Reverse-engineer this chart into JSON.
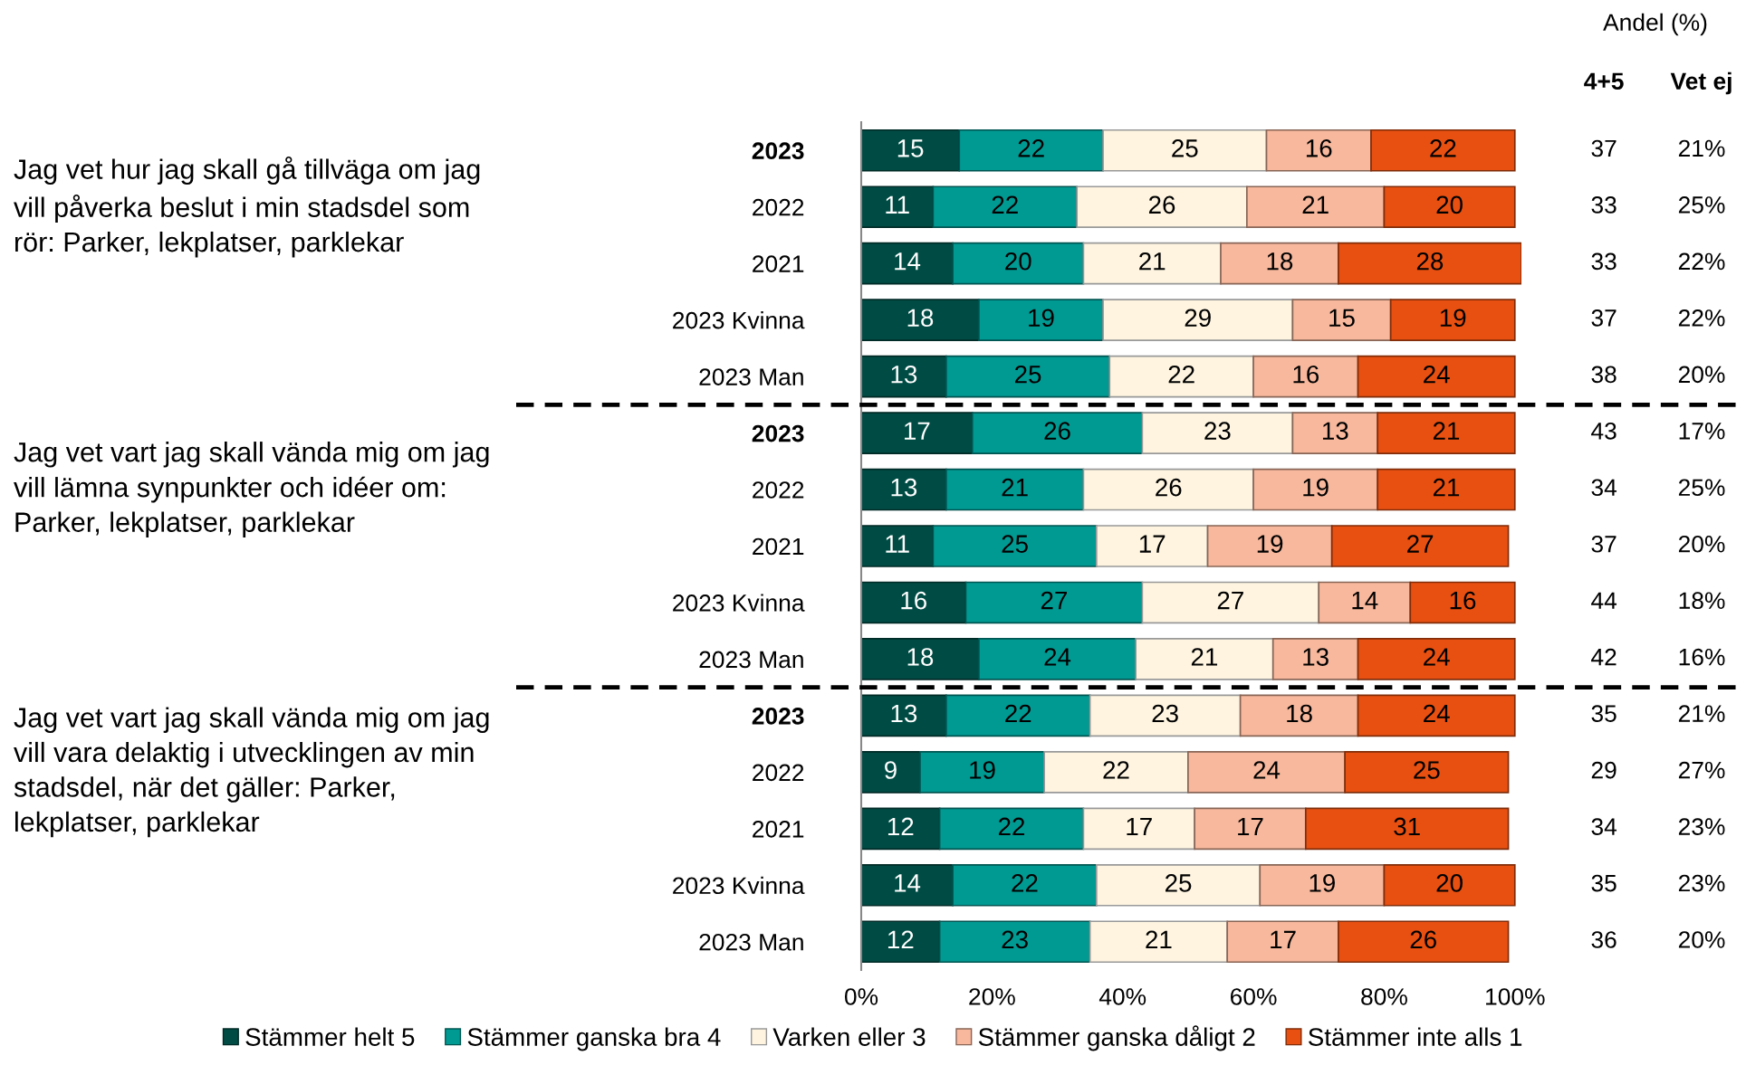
{
  "chart_data": {
    "type": "bar",
    "orientation": "horizontal",
    "stacked": true,
    "data_labels": true,
    "legend": "bottom",
    "grid": false,
    "categories": [
      "2023",
      "2022",
      "2021",
      "2023 Kvinna",
      "2023 Man",
      "2023",
      "2022",
      "2021",
      "2023 Kvinna",
      "2023 Man",
      "2023",
      "2022",
      "2021",
      "2023 Kvinna",
      "2023 Man"
    ],
    "series": [
      {
        "name": "Stämmer helt 5",
        "color": "#004c45",
        "values": [
          15,
          11,
          14,
          18,
          13,
          17,
          13,
          11,
          16,
          18,
          13,
          9,
          12,
          14,
          12
        ]
      },
      {
        "name": "Stämmer ganska bra 4",
        "color": "#009a93",
        "values": [
          22,
          22,
          20,
          19,
          25,
          26,
          21,
          25,
          27,
          24,
          22,
          19,
          22,
          22,
          23
        ]
      },
      {
        "name": "Varken eller 3",
        "color": "#fef4e0",
        "values": [
          25,
          26,
          21,
          29,
          22,
          23,
          26,
          17,
          27,
          21,
          23,
          22,
          17,
          25,
          21
        ]
      },
      {
        "name": "Stämmer ganska dåligt 2",
        "color": "#f7b89d",
        "values": [
          16,
          21,
          18,
          15,
          16,
          13,
          19,
          19,
          14,
          13,
          18,
          24,
          17,
          19,
          17
        ]
      },
      {
        "name": "Stämmer inte alls 1",
        "color": "#e85011",
        "values": [
          22,
          20,
          28,
          19,
          24,
          21,
          21,
          27,
          16,
          24,
          24,
          25,
          31,
          20,
          26
        ]
      }
    ],
    "xlim": [
      0,
      101
    ],
    "xticks": [
      {
        "value": 0,
        "label": "0%"
      },
      {
        "value": 20,
        "label": "20%"
      },
      {
        "value": 40,
        "label": "40%"
      },
      {
        "value": 60,
        "label": "60%"
      },
      {
        "value": 80,
        "label": "80%"
      },
      {
        "value": 100,
        "label": "100%"
      }
    ],
    "annotations": [
      "Jag vet hur jag skall gå tillväga om jag\nvill påverka beslut i min stadsdel som\nrör: Parker, lekplatser, parklekar",
      "Jag vet vart jag skall vända mig om jag\nvill lämna synpunkter och idéer om:\nParker, lekplatser, parklekar",
      "Jag vet vart jag skall vända mig om jag\nvill vara delaktig i utvecklingen av min\nstadsdel, när det gäller: Parker,\nlekplatser, parklekar",
      "Andel (%)",
      "4+5",
      "Vet ej",
      "37",
      "21%",
      "33",
      "25%",
      "33",
      "22%",
      "37",
      "22%",
      "38",
      "20%",
      "43",
      "17%",
      "34",
      "25%",
      "37",
      "20%",
      "44",
      "18%",
      "42",
      "16%",
      "35",
      "21%",
      "29",
      "27%",
      "34",
      "23%",
      "35",
      "23%",
      "36",
      "20%"
    ]
  }
}
